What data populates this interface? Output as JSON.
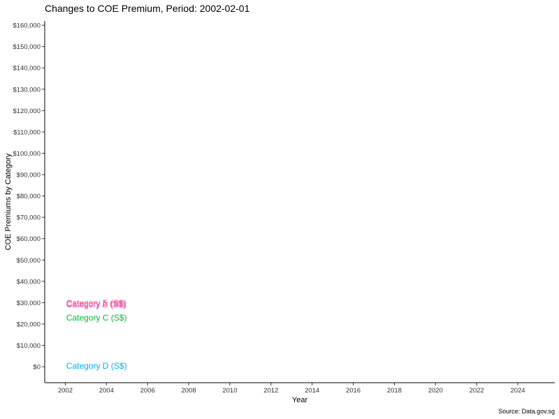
{
  "chart_data": {
    "type": "line",
    "title": "Changes to COE Premium, Period: 2002-02-01",
    "xlabel": "Year",
    "ylabel": "COE Premiums by Category",
    "caption": "Source: Data.gov.sg",
    "xlim": [
      2001,
      2025.8
    ],
    "ylim": [
      -7500,
      162000
    ],
    "x_ticks": [
      2002,
      2004,
      2006,
      2008,
      2010,
      2012,
      2014,
      2016,
      2018,
      2020,
      2022,
      2024
    ],
    "x_tick_labels": [
      "2002",
      "2004",
      "2006",
      "2008",
      "2010",
      "2012",
      "2014",
      "2016",
      "2018",
      "2020",
      "2022",
      "2024"
    ],
    "y_ticks": [
      0,
      10000,
      20000,
      30000,
      40000,
      50000,
      60000,
      70000,
      80000,
      90000,
      100000,
      110000,
      120000,
      130000,
      140000,
      150000,
      160000
    ],
    "y_tick_labels": [
      "$0",
      "$10,000",
      "$20,000",
      "$30,000",
      "$40,000",
      "$50,000",
      "$60,000",
      "$70,000",
      "$80,000",
      "$90,000",
      "$100,000",
      "$110,000",
      "$120,000",
      "$130,000",
      "$140,000",
      "$150,000",
      "$160,000"
    ],
    "grid": false,
    "legend": "none",
    "series": [
      {
        "name": "Category A (S$)",
        "color": "#F8766D",
        "x": [
          2002.08
        ],
        "y": [
          29500
        ]
      },
      {
        "name": "Category B (S$)",
        "color": "#E76BF3",
        "x": [
          2002.08
        ],
        "y": [
          29000
        ]
      },
      {
        "name": "Category C (S$)",
        "color": "#00BA38",
        "x": [
          2002.08
        ],
        "y": [
          23000
        ]
      },
      {
        "name": "Category D (S$)",
        "color": "#00B0F6",
        "x": [
          2002.08
        ],
        "y": [
          300
        ]
      },
      {
        "name": "Category E (S$)",
        "color": "#E7609A",
        "x": [
          2002.08
        ],
        "y": [
          29800
        ]
      }
    ]
  }
}
